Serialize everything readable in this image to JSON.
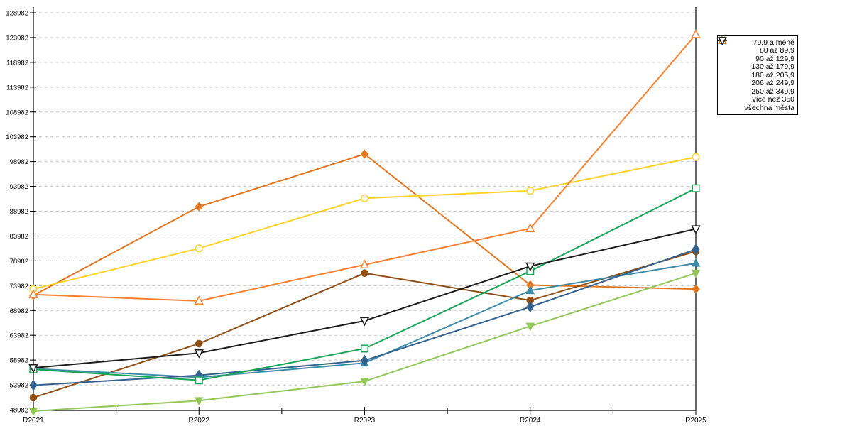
{
  "chart_data": {
    "type": "line",
    "title": "",
    "xlabel": "",
    "ylabel": "",
    "x_categories": [
      "R2021",
      "R2022",
      "R2023",
      "R2024",
      "R2025"
    ],
    "y_ticks": [
      48982,
      53982,
      58982,
      63982,
      68982,
      73982,
      78982,
      83982,
      88982,
      93982,
      98982,
      103982,
      108982,
      113982,
      118982,
      123982,
      128982
    ],
    "ylim": [
      48982,
      128982
    ],
    "grid": "horizontal-dashed",
    "gridline_color": "#c6c6c6",
    "axis_color": "#000000",
    "legend_position": "top-right",
    "series": [
      {
        "name": "79,9 a méně",
        "marker": "diamond",
        "filled": true,
        "color": "#e2751e",
        "values": [
          72000,
          89900,
          100500,
          74100,
          73300
        ]
      },
      {
        "name": "80 až 89,9",
        "marker": "circle",
        "filled": true,
        "color": "#8f4e14",
        "values": [
          51400,
          62300,
          76500,
          71000,
          80900
        ]
      },
      {
        "name": "90 až 129,9",
        "marker": "triangle-up",
        "filled": true,
        "color": "#3d8ca8",
        "values": [
          57250,
          55500,
          58400,
          73000,
          78500
        ]
      },
      {
        "name": "130 až 179,9",
        "marker": "diamond-tall",
        "filled": true,
        "color": "#33618e",
        "values": [
          53900,
          55900,
          58900,
          69700,
          81300
        ]
      },
      {
        "name": "180 až 205,9",
        "marker": "triangle-down",
        "filled": true,
        "color": "#92c858",
        "values": [
          48700,
          50800,
          54700,
          65800,
          76500
        ]
      },
      {
        "name": "206 až 249,9",
        "marker": "square",
        "filled": false,
        "color": "#17a657",
        "values": [
          57100,
          54900,
          61300,
          76900,
          93600
        ]
      },
      {
        "name": "250 až 349,9",
        "marker": "circle",
        "filled": false,
        "color": "#ffd224",
        "values": [
          73300,
          81500,
          91600,
          93100,
          99900
        ]
      },
      {
        "name": "více než 350",
        "marker": "triangle-up",
        "filled": false,
        "color": "#f8812f",
        "values": [
          72200,
          70900,
          78200,
          85500,
          124600
        ]
      },
      {
        "name": "všechna města",
        "marker": "triangle-down",
        "filled": false,
        "color": "#1c1c1c",
        "values": [
          57400,
          60400,
          66900,
          77900,
          85400
        ]
      }
    ]
  }
}
